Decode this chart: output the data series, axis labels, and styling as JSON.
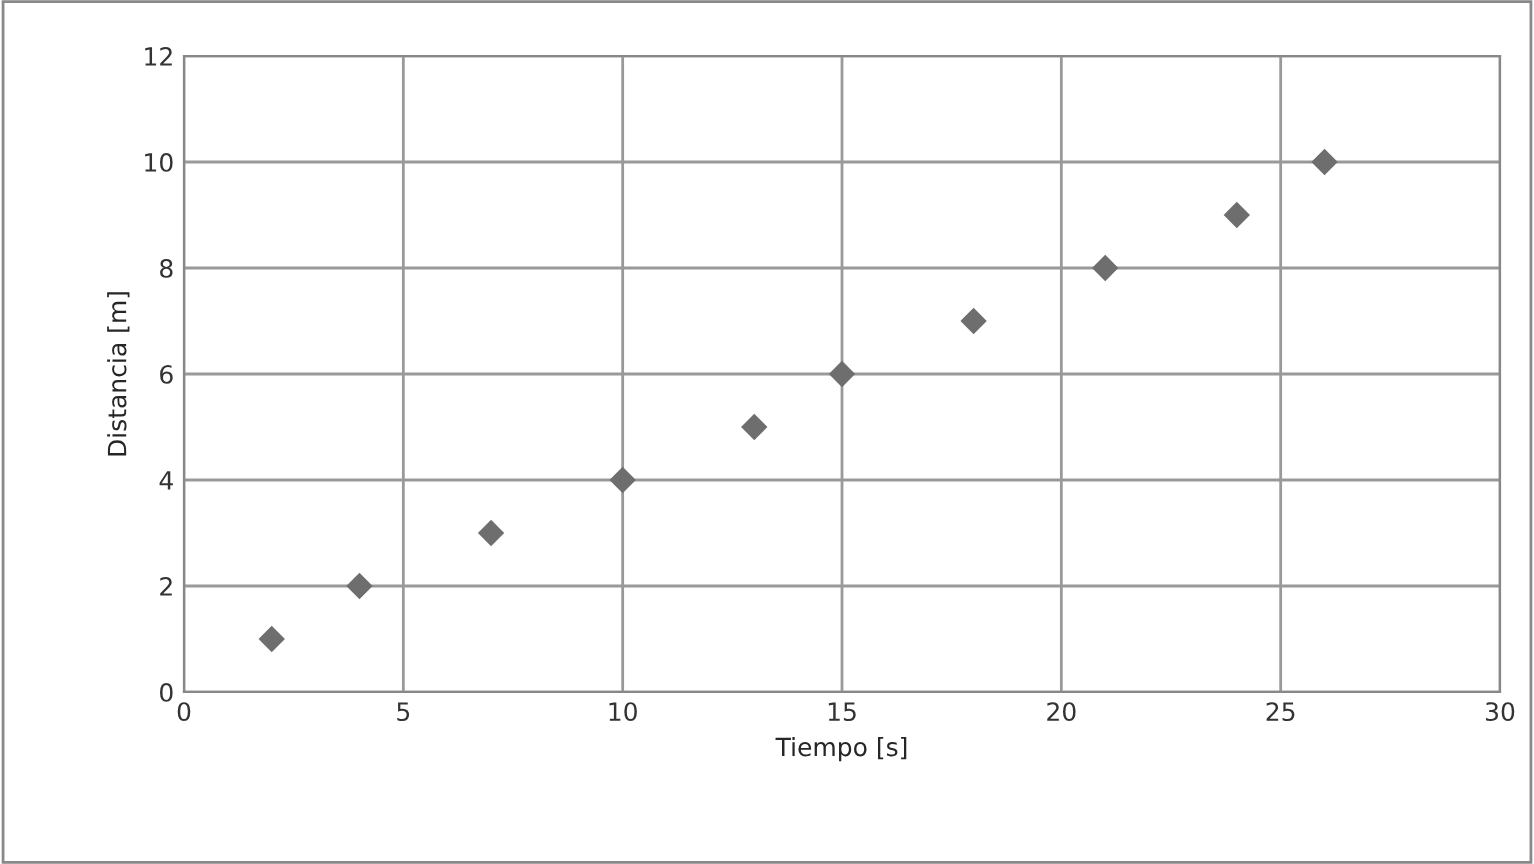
{
  "chart_data": {
    "type": "scatter",
    "xlabel": "Tiempo [s]",
    "ylabel": "Distancia [m]",
    "x": [
      2,
      4,
      7,
      10,
      13,
      15,
      18,
      21,
      24,
      26
    ],
    "values": [
      1,
      2,
      3,
      4,
      5,
      6,
      7,
      8,
      9,
      10
    ],
    "color": "#6e6e6e",
    "marker": "diamond",
    "xlim": [
      0,
      30
    ],
    "xticks": [
      0,
      5,
      10,
      15,
      20,
      25,
      30
    ],
    "ylim": [
      0,
      12
    ],
    "yticks": [
      0,
      2,
      4,
      6,
      8,
      10,
      12
    ],
    "grid": true
  }
}
